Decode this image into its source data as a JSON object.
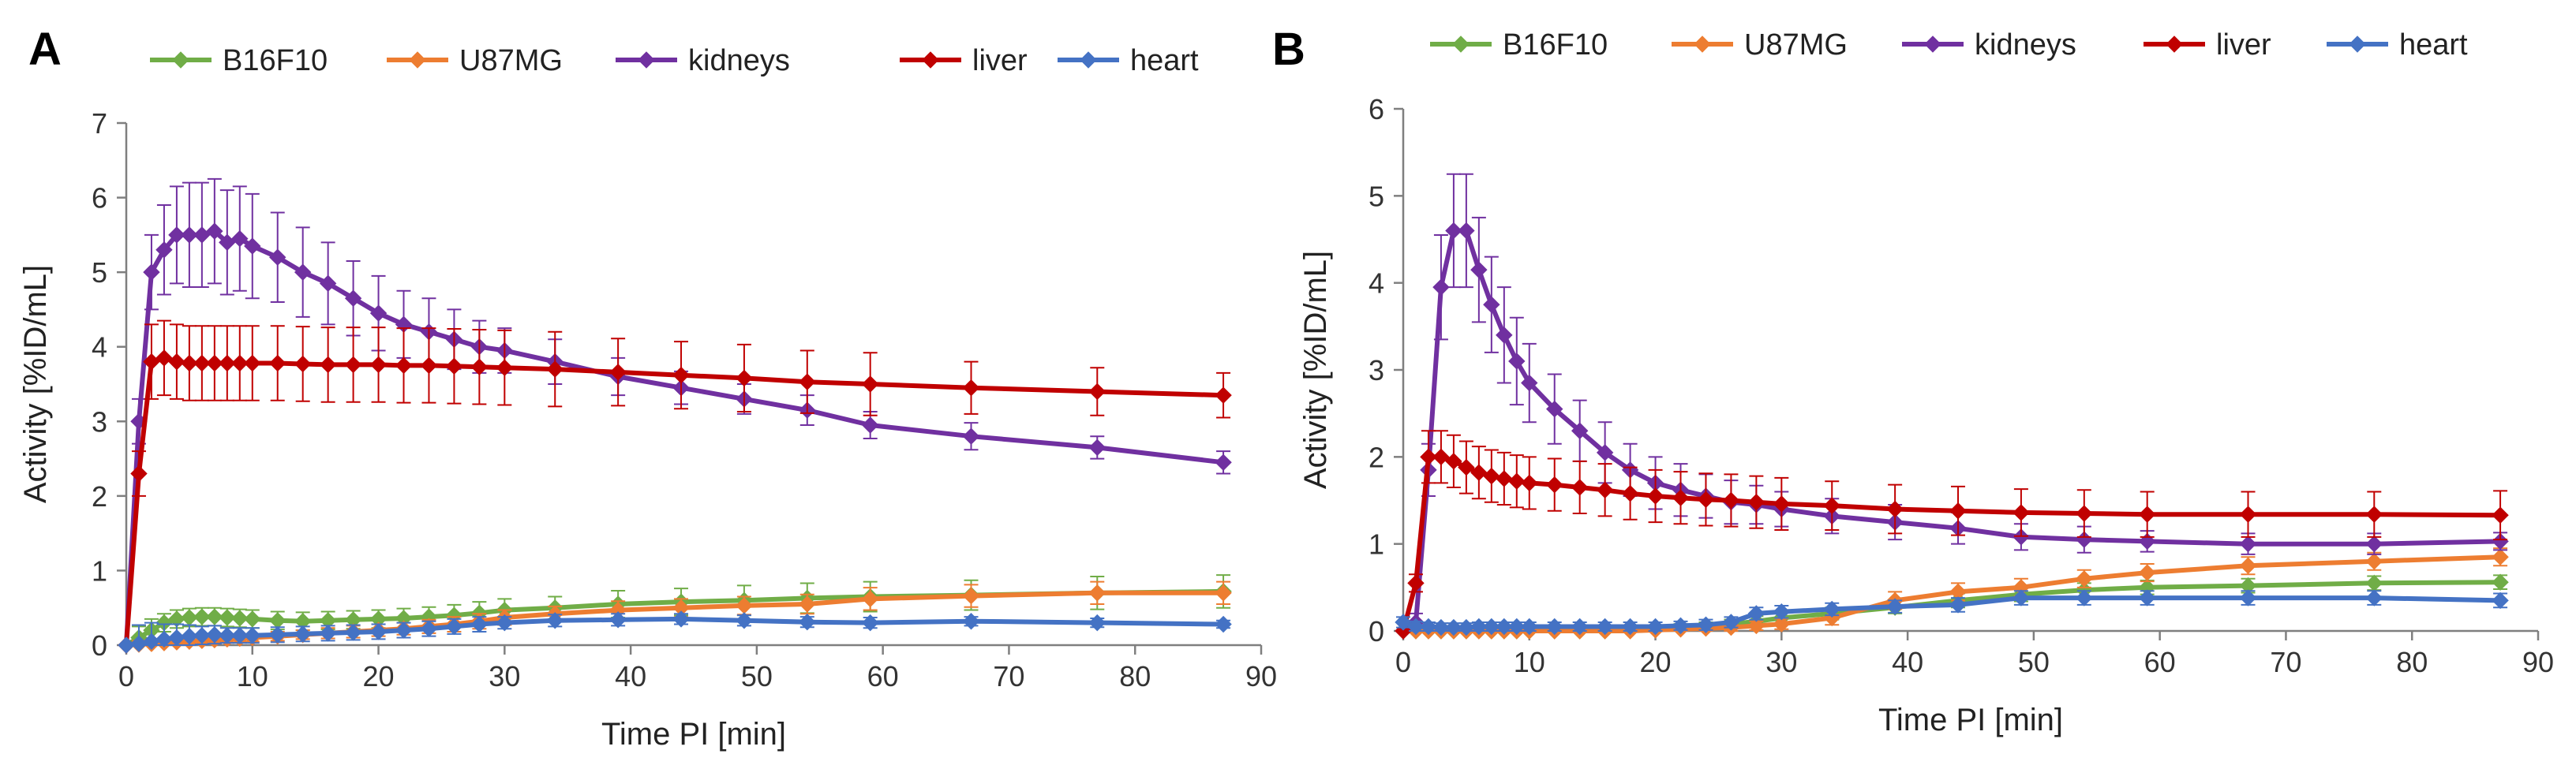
{
  "figure_title": "",
  "chart_data": [
    {
      "type": "line",
      "panel_label": "A",
      "title": "",
      "xlabel": "Time PI [min]",
      "ylabel": "Activity [%ID/mL]",
      "xlim": [
        0,
        90
      ],
      "ylim": [
        0,
        7
      ],
      "xticks": [
        0,
        10,
        20,
        30,
        40,
        50,
        60,
        70,
        80,
        90
      ],
      "yticks": [
        0,
        1,
        2,
        3,
        4,
        5,
        6,
        7
      ],
      "grid": false,
      "legend_position": "top",
      "series": [
        {
          "name": "B16F10",
          "color": "#70AD47",
          "x": [
            0,
            1,
            2,
            3,
            4,
            5,
            6,
            7,
            8,
            9,
            10,
            12,
            14,
            16,
            18,
            20,
            22,
            24,
            26,
            28,
            30,
            34,
            39,
            44,
            49,
            54,
            59,
            67,
            77,
            87
          ],
          "y": [
            0,
            0.1,
            0.2,
            0.3,
            0.35,
            0.37,
            0.38,
            0.38,
            0.37,
            0.36,
            0.35,
            0.33,
            0.32,
            0.33,
            0.34,
            0.35,
            0.36,
            0.38,
            0.4,
            0.43,
            0.47,
            0.5,
            0.55,
            0.58,
            0.6,
            0.63,
            0.65,
            0.67,
            0.7,
            0.72
          ],
          "err": [
            0,
            0.15,
            0.15,
            0.12,
            0.12,
            0.12,
            0.12,
            0.12,
            0.12,
            0.12,
            0.12,
            0.12,
            0.12,
            0.12,
            0.12,
            0.12,
            0.13,
            0.13,
            0.14,
            0.15,
            0.15,
            0.15,
            0.18,
            0.18,
            0.2,
            0.2,
            0.2,
            0.2,
            0.22,
            0.22
          ]
        },
        {
          "name": "U87MG",
          "color": "#ED7D31",
          "x": [
            0,
            1,
            2,
            3,
            4,
            5,
            6,
            7,
            8,
            9,
            10,
            12,
            14,
            16,
            18,
            20,
            22,
            24,
            26,
            28,
            30,
            34,
            39,
            44,
            49,
            54,
            59,
            67,
            77,
            87
          ],
          "y": [
            0,
            0.01,
            0.02,
            0.03,
            0.04,
            0.05,
            0.06,
            0.07,
            0.08,
            0.09,
            0.1,
            0.12,
            0.14,
            0.16,
            0.18,
            0.2,
            0.22,
            0.25,
            0.28,
            0.32,
            0.37,
            0.42,
            0.47,
            0.5,
            0.53,
            0.55,
            0.62,
            0.66,
            0.7,
            0.7
          ],
          "err": [
            0,
            0.05,
            0.05,
            0.05,
            0.05,
            0.05,
            0.05,
            0.05,
            0.05,
            0.05,
            0.05,
            0.06,
            0.06,
            0.07,
            0.08,
            0.08,
            0.08,
            0.09,
            0.1,
            0.1,
            0.1,
            0.1,
            0.12,
            0.12,
            0.12,
            0.13,
            0.15,
            0.15,
            0.15,
            0.15
          ]
        },
        {
          "name": "kidneys",
          "color": "#7030A0",
          "x": [
            0,
            1,
            2,
            3,
            4,
            5,
            6,
            7,
            8,
            9,
            10,
            12,
            14,
            16,
            18,
            20,
            22,
            24,
            26,
            28,
            30,
            34,
            39,
            44,
            49,
            54,
            59,
            67,
            77,
            87
          ],
          "y": [
            0,
            3.0,
            5.0,
            5.3,
            5.5,
            5.5,
            5.5,
            5.55,
            5.4,
            5.45,
            5.35,
            5.2,
            5.0,
            4.85,
            4.65,
            4.45,
            4.3,
            4.2,
            4.1,
            4.0,
            3.95,
            3.8,
            3.6,
            3.45,
            3.3,
            3.15,
            2.95,
            2.8,
            2.65,
            2.45
          ],
          "err": [
            0,
            0.3,
            0.5,
            0.6,
            0.65,
            0.7,
            0.7,
            0.7,
            0.7,
            0.7,
            0.7,
            0.6,
            0.6,
            0.55,
            0.5,
            0.5,
            0.45,
            0.45,
            0.4,
            0.35,
            0.3,
            0.3,
            0.25,
            0.22,
            0.2,
            0.2,
            0.18,
            0.18,
            0.15,
            0.15
          ]
        },
        {
          "name": "liver",
          "color": "#C00000",
          "x": [
            0,
            1,
            2,
            3,
            4,
            5,
            6,
            7,
            8,
            9,
            10,
            12,
            14,
            16,
            18,
            20,
            22,
            24,
            26,
            28,
            30,
            34,
            39,
            44,
            49,
            54,
            59,
            67,
            77,
            87
          ],
          "y": [
            0,
            2.3,
            3.8,
            3.85,
            3.8,
            3.78,
            3.78,
            3.78,
            3.78,
            3.78,
            3.78,
            3.78,
            3.77,
            3.76,
            3.76,
            3.76,
            3.75,
            3.75,
            3.74,
            3.73,
            3.72,
            3.7,
            3.66,
            3.62,
            3.58,
            3.53,
            3.5,
            3.45,
            3.4,
            3.35
          ],
          "err": [
            0,
            0.3,
            0.5,
            0.5,
            0.5,
            0.5,
            0.5,
            0.5,
            0.5,
            0.5,
            0.5,
            0.5,
            0.5,
            0.5,
            0.5,
            0.5,
            0.5,
            0.5,
            0.5,
            0.5,
            0.5,
            0.5,
            0.45,
            0.45,
            0.45,
            0.42,
            0.42,
            0.35,
            0.32,
            0.3
          ]
        },
        {
          "name": "heart",
          "color": "#4472C4",
          "x": [
            0,
            1,
            2,
            3,
            4,
            5,
            6,
            7,
            8,
            9,
            10,
            12,
            14,
            16,
            18,
            20,
            22,
            24,
            26,
            28,
            30,
            34,
            39,
            44,
            49,
            54,
            59,
            67,
            77,
            87
          ],
          "y": [
            0,
            0.02,
            0.05,
            0.08,
            0.1,
            0.12,
            0.13,
            0.14,
            0.13,
            0.13,
            0.13,
            0.14,
            0.15,
            0.16,
            0.17,
            0.18,
            0.2,
            0.22,
            0.25,
            0.28,
            0.3,
            0.33,
            0.34,
            0.35,
            0.33,
            0.31,
            0.3,
            0.32,
            0.3,
            0.28
          ],
          "err": [
            0,
            0.25,
            0.25,
            0.2,
            0.18,
            0.15,
            0.12,
            0.12,
            0.1,
            0.1,
            0.1,
            0.1,
            0.1,
            0.1,
            0.1,
            0.1,
            0.1,
            0.1,
            0.1,
            0.1,
            0.08,
            0.08,
            0.08,
            0.07,
            0.07,
            0.07,
            0.07,
            0.06,
            0.06,
            0.05
          ]
        }
      ]
    },
    {
      "type": "line",
      "panel_label": "B",
      "title": "",
      "xlabel": "Time PI [min]",
      "ylabel": "Activity [%ID/mL]",
      "xlim": [
        0,
        90
      ],
      "ylim": [
        0,
        6
      ],
      "xticks": [
        0,
        10,
        20,
        30,
        40,
        50,
        60,
        70,
        80,
        90
      ],
      "yticks": [
        0,
        1,
        2,
        3,
        4,
        5,
        6
      ],
      "grid": false,
      "legend_position": "top",
      "series": [
        {
          "name": "B16F10",
          "color": "#70AD47",
          "x": [
            0,
            1,
            2,
            3,
            4,
            5,
            6,
            7,
            8,
            9,
            10,
            12,
            14,
            16,
            18,
            20,
            22,
            24,
            26,
            28,
            30,
            34,
            39,
            44,
            49,
            54,
            59,
            67,
            77,
            87
          ],
          "y": [
            0,
            0,
            0,
            0,
            0,
            0,
            0,
            0,
            0,
            0,
            0,
            0,
            0,
            0,
            0.01,
            0.02,
            0.03,
            0.05,
            0.08,
            0.11,
            0.15,
            0.2,
            0.27,
            0.35,
            0.42,
            0.47,
            0.5,
            0.52,
            0.55,
            0.56
          ],
          "err": [
            0,
            0.03,
            0.03,
            0.03,
            0.03,
            0.03,
            0.03,
            0.03,
            0.03,
            0.03,
            0.03,
            0.03,
            0.03,
            0.04,
            0.04,
            0.04,
            0.05,
            0.05,
            0.05,
            0.06,
            0.06,
            0.07,
            0.07,
            0.08,
            0.08,
            0.08,
            0.08,
            0.08,
            0.08,
            0.08
          ]
        },
        {
          "name": "U87MG",
          "color": "#ED7D31",
          "x": [
            0,
            1,
            2,
            3,
            4,
            5,
            6,
            7,
            8,
            9,
            10,
            12,
            14,
            16,
            18,
            20,
            22,
            24,
            26,
            28,
            30,
            34,
            39,
            44,
            49,
            54,
            59,
            67,
            77,
            87
          ],
          "y": [
            0,
            0,
            0,
            0,
            0,
            0,
            0,
            0,
            0,
            0,
            0,
            0,
            0,
            0,
            0,
            0.01,
            0.02,
            0.03,
            0.04,
            0.06,
            0.08,
            0.15,
            0.35,
            0.45,
            0.5,
            0.6,
            0.67,
            0.75,
            0.8,
            0.85
          ],
          "err": [
            0,
            0.02,
            0.02,
            0.02,
            0.02,
            0.02,
            0.02,
            0.02,
            0.02,
            0.02,
            0.02,
            0.02,
            0.02,
            0.02,
            0.02,
            0.02,
            0.03,
            0.03,
            0.04,
            0.05,
            0.06,
            0.08,
            0.1,
            0.1,
            0.1,
            0.1,
            0.1,
            0.1,
            0.1,
            0.1
          ]
        },
        {
          "name": "kidneys",
          "color": "#7030A0",
          "x": [
            0,
            1,
            2,
            3,
            4,
            5,
            6,
            7,
            8,
            9,
            10,
            12,
            14,
            16,
            18,
            20,
            22,
            24,
            26,
            28,
            30,
            34,
            39,
            44,
            49,
            54,
            59,
            67,
            77,
            87
          ],
          "y": [
            0,
            0.1,
            1.85,
            3.95,
            4.6,
            4.6,
            4.15,
            3.75,
            3.4,
            3.1,
            2.85,
            2.55,
            2.3,
            2.05,
            1.85,
            1.7,
            1.62,
            1.55,
            1.48,
            1.45,
            1.4,
            1.32,
            1.25,
            1.18,
            1.08,
            1.05,
            1.03,
            1.0,
            1.0,
            1.03
          ],
          "err": [
            0,
            0.1,
            0.3,
            0.6,
            0.65,
            0.65,
            0.6,
            0.55,
            0.55,
            0.5,
            0.45,
            0.4,
            0.35,
            0.35,
            0.3,
            0.3,
            0.3,
            0.25,
            0.25,
            0.22,
            0.2,
            0.2,
            0.2,
            0.18,
            0.15,
            0.15,
            0.12,
            0.12,
            0.12,
            0.1
          ]
        },
        {
          "name": "liver",
          "color": "#C00000",
          "x": [
            0,
            1,
            2,
            3,
            4,
            5,
            6,
            7,
            8,
            9,
            10,
            12,
            14,
            16,
            18,
            20,
            22,
            24,
            26,
            28,
            30,
            34,
            39,
            44,
            49,
            54,
            59,
            67,
            77,
            87
          ],
          "y": [
            0,
            0.55,
            2.0,
            2.0,
            1.95,
            1.88,
            1.82,
            1.78,
            1.75,
            1.72,
            1.7,
            1.68,
            1.65,
            1.62,
            1.58,
            1.55,
            1.53,
            1.51,
            1.5,
            1.48,
            1.46,
            1.44,
            1.4,
            1.38,
            1.36,
            1.35,
            1.34,
            1.34,
            1.34,
            1.33
          ],
          "err": [
            0,
            0.1,
            0.3,
            0.3,
            0.3,
            0.3,
            0.3,
            0.3,
            0.3,
            0.3,
            0.3,
            0.3,
            0.3,
            0.3,
            0.3,
            0.3,
            0.3,
            0.3,
            0.3,
            0.3,
            0.3,
            0.28,
            0.28,
            0.28,
            0.27,
            0.27,
            0.26,
            0.26,
            0.26,
            0.28
          ]
        },
        {
          "name": "heart",
          "color": "#4472C4",
          "x": [
            0,
            1,
            2,
            3,
            4,
            5,
            6,
            7,
            8,
            9,
            10,
            12,
            14,
            16,
            18,
            20,
            22,
            24,
            26,
            28,
            30,
            34,
            39,
            44,
            49,
            54,
            59,
            67,
            77,
            87
          ],
          "y": [
            0.1,
            0.05,
            0.05,
            0.04,
            0.04,
            0.04,
            0.05,
            0.05,
            0.05,
            0.05,
            0.05,
            0.05,
            0.05,
            0.05,
            0.05,
            0.05,
            0.06,
            0.07,
            0.1,
            0.2,
            0.22,
            0.25,
            0.28,
            0.3,
            0.38,
            0.38,
            0.38,
            0.38,
            0.38,
            0.35
          ],
          "err": [
            0.06,
            0.06,
            0.05,
            0.05,
            0.05,
            0.05,
            0.05,
            0.05,
            0.05,
            0.05,
            0.05,
            0.05,
            0.05,
            0.05,
            0.05,
            0.05,
            0.05,
            0.06,
            0.06,
            0.07,
            0.07,
            0.07,
            0.07,
            0.08,
            0.08,
            0.08,
            0.08,
            0.08,
            0.08,
            0.08
          ]
        }
      ]
    }
  ]
}
